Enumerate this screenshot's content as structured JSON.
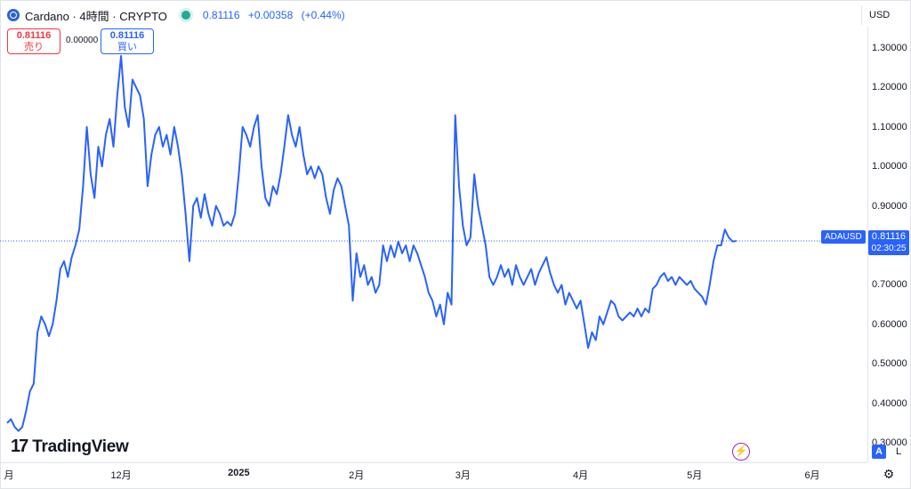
{
  "header": {
    "title": "Cardano · 4時間 · CRYPTO",
    "last": "0.81116",
    "change": "+0.00358",
    "change_pct": "(+0.44%)"
  },
  "trade": {
    "sell_price": "0.81116",
    "sell_label": "売り",
    "spread": "0.00000",
    "buy_price": "0.81116",
    "buy_label": "買い"
  },
  "currency": "USD",
  "last_price_tag": {
    "symbol": "ADAUSD",
    "price": "0.81116",
    "countdown": "02:30:25"
  },
  "logo_text": "TradingView",
  "scale_buttons": {
    "auto": "A",
    "log": "L"
  },
  "colors": {
    "line": "#2962ff",
    "up": "#22ab94",
    "down": "#f23645"
  },
  "chart_data": {
    "type": "line",
    "symbol": "ADAUSD",
    "ylim": [
      0.28,
      1.36
    ],
    "yticks": [
      0.3,
      0.4,
      0.5,
      0.6,
      0.7,
      0.8,
      0.9,
      1.0,
      1.1,
      1.2,
      1.3
    ],
    "ytick_labels": [
      "0.30000",
      "0.40000",
      "0.50000",
      "0.60000",
      "0.70000",
      "0.80000",
      "0.90000",
      "1.00000",
      "1.10000",
      "1.20000",
      "1.30000"
    ],
    "xticks": [
      {
        "label": "月",
        "x": 0.0
      },
      {
        "label": "12月",
        "x": 30.0
      },
      {
        "label": "2025",
        "x": 61.0,
        "bold": true
      },
      {
        "label": "2月",
        "x": 92.0
      },
      {
        "label": "3月",
        "x": 120.0
      },
      {
        "label": "4月",
        "x": 151.0
      },
      {
        "label": "5月",
        "x": 181.0
      },
      {
        "label": "6月",
        "x": 212.0
      }
    ],
    "xlim": [
      2,
      227
    ],
    "last_value": 0.81116,
    "grid": false,
    "points": [
      [
        2,
        0.35
      ],
      [
        3,
        0.36
      ],
      [
        4,
        0.34
      ],
      [
        5,
        0.33
      ],
      [
        6,
        0.34
      ],
      [
        7,
        0.38
      ],
      [
        8,
        0.43
      ],
      [
        9,
        0.45
      ],
      [
        10,
        0.58
      ],
      [
        11,
        0.62
      ],
      [
        12,
        0.6
      ],
      [
        13,
        0.57
      ],
      [
        14,
        0.6
      ],
      [
        15,
        0.66
      ],
      [
        16,
        0.74
      ],
      [
        17,
        0.76
      ],
      [
        18,
        0.72
      ],
      [
        19,
        0.77
      ],
      [
        20,
        0.8
      ],
      [
        21,
        0.84
      ],
      [
        22,
        0.95
      ],
      [
        23,
        1.1
      ],
      [
        24,
        0.98
      ],
      [
        25,
        0.92
      ],
      [
        26,
        1.05
      ],
      [
        27,
        1.0
      ],
      [
        28,
        1.08
      ],
      [
        29,
        1.12
      ],
      [
        30,
        1.05
      ],
      [
        31,
        1.18
      ],
      [
        32,
        1.28
      ],
      [
        33,
        1.15
      ],
      [
        34,
        1.1
      ],
      [
        35,
        1.22
      ],
      [
        36,
        1.2
      ],
      [
        37,
        1.18
      ],
      [
        38,
        1.12
      ],
      [
        39,
        0.95
      ],
      [
        40,
        1.03
      ],
      [
        41,
        1.08
      ],
      [
        42,
        1.1
      ],
      [
        43,
        1.05
      ],
      [
        44,
        1.08
      ],
      [
        45,
        1.03
      ],
      [
        46,
        1.1
      ],
      [
        47,
        1.05
      ],
      [
        48,
        0.98
      ],
      [
        49,
        0.88
      ],
      [
        50,
        0.76
      ],
      [
        51,
        0.9
      ],
      [
        52,
        0.92
      ],
      [
        53,
        0.87
      ],
      [
        54,
        0.93
      ],
      [
        55,
        0.88
      ],
      [
        56,
        0.85
      ],
      [
        57,
        0.9
      ],
      [
        58,
        0.88
      ],
      [
        59,
        0.85
      ],
      [
        60,
        0.86
      ],
      [
        61,
        0.85
      ],
      [
        62,
        0.88
      ],
      [
        63,
        0.98
      ],
      [
        64,
        1.1
      ],
      [
        65,
        1.08
      ],
      [
        66,
        1.05
      ],
      [
        67,
        1.1
      ],
      [
        68,
        1.13
      ],
      [
        69,
        1.0
      ],
      [
        70,
        0.92
      ],
      [
        71,
        0.9
      ],
      [
        72,
        0.95
      ],
      [
        73,
        0.93
      ],
      [
        74,
        0.98
      ],
      [
        75,
        1.05
      ],
      [
        76,
        1.13
      ],
      [
        77,
        1.08
      ],
      [
        78,
        1.05
      ],
      [
        79,
        1.1
      ],
      [
        80,
        1.03
      ],
      [
        81,
        0.98
      ],
      [
        82,
        1.0
      ],
      [
        83,
        0.97
      ],
      [
        84,
        1.0
      ],
      [
        85,
        0.98
      ],
      [
        86,
        0.92
      ],
      [
        87,
        0.88
      ],
      [
        88,
        0.94
      ],
      [
        89,
        0.97
      ],
      [
        90,
        0.95
      ],
      [
        91,
        0.9
      ],
      [
        92,
        0.85
      ],
      [
        93,
        0.66
      ],
      [
        94,
        0.78
      ],
      [
        95,
        0.72
      ],
      [
        96,
        0.75
      ],
      [
        97,
        0.7
      ],
      [
        98,
        0.72
      ],
      [
        99,
        0.68
      ],
      [
        100,
        0.7
      ],
      [
        101,
        0.8
      ],
      [
        102,
        0.76
      ],
      [
        103,
        0.8
      ],
      [
        104,
        0.77
      ],
      [
        105,
        0.81
      ],
      [
        106,
        0.78
      ],
      [
        107,
        0.8
      ],
      [
        108,
        0.76
      ],
      [
        109,
        0.8
      ],
      [
        110,
        0.78
      ],
      [
        111,
        0.75
      ],
      [
        112,
        0.72
      ],
      [
        113,
        0.68
      ],
      [
        114,
        0.66
      ],
      [
        115,
        0.62
      ],
      [
        116,
        0.65
      ],
      [
        117,
        0.6
      ],
      [
        118,
        0.68
      ],
      [
        119,
        0.65
      ],
      [
        120,
        1.13
      ],
      [
        121,
        0.95
      ],
      [
        122,
        0.85
      ],
      [
        123,
        0.8
      ],
      [
        124,
        0.82
      ],
      [
        125,
        0.98
      ],
      [
        126,
        0.9
      ],
      [
        127,
        0.85
      ],
      [
        128,
        0.8
      ],
      [
        129,
        0.72
      ],
      [
        130,
        0.7
      ],
      [
        131,
        0.72
      ],
      [
        132,
        0.75
      ],
      [
        133,
        0.72
      ],
      [
        134,
        0.74
      ],
      [
        135,
        0.7
      ],
      [
        136,
        0.75
      ],
      [
        137,
        0.72
      ],
      [
        138,
        0.7
      ],
      [
        139,
        0.72
      ],
      [
        140,
        0.74
      ],
      [
        141,
        0.7
      ],
      [
        142,
        0.73
      ],
      [
        143,
        0.75
      ],
      [
        144,
        0.77
      ],
      [
        145,
        0.73
      ],
      [
        146,
        0.7
      ],
      [
        147,
        0.68
      ],
      [
        148,
        0.7
      ],
      [
        149,
        0.65
      ],
      [
        150,
        0.68
      ],
      [
        151,
        0.66
      ],
      [
        152,
        0.64
      ],
      [
        153,
        0.66
      ],
      [
        154,
        0.6
      ],
      [
        155,
        0.54
      ],
      [
        156,
        0.58
      ],
      [
        157,
        0.56
      ],
      [
        158,
        0.62
      ],
      [
        159,
        0.6
      ],
      [
        160,
        0.63
      ],
      [
        161,
        0.66
      ],
      [
        162,
        0.65
      ],
      [
        163,
        0.62
      ],
      [
        164,
        0.61
      ],
      [
        165,
        0.62
      ],
      [
        166,
        0.63
      ],
      [
        167,
        0.62
      ],
      [
        168,
        0.64
      ],
      [
        169,
        0.62
      ],
      [
        170,
        0.64
      ],
      [
        171,
        0.63
      ],
      [
        172,
        0.69
      ],
      [
        173,
        0.7
      ],
      [
        174,
        0.72
      ],
      [
        175,
        0.73
      ],
      [
        176,
        0.71
      ],
      [
        177,
        0.72
      ],
      [
        178,
        0.7
      ],
      [
        179,
        0.72
      ],
      [
        180,
        0.71
      ],
      [
        181,
        0.7
      ],
      [
        182,
        0.71
      ],
      [
        183,
        0.69
      ],
      [
        184,
        0.68
      ],
      [
        185,
        0.67
      ],
      [
        186,
        0.65
      ],
      [
        187,
        0.7
      ],
      [
        188,
        0.76
      ],
      [
        189,
        0.8
      ],
      [
        190,
        0.8
      ],
      [
        191,
        0.84
      ],
      [
        192,
        0.82
      ],
      [
        193,
        0.81
      ],
      [
        194,
        0.81116
      ]
    ]
  }
}
